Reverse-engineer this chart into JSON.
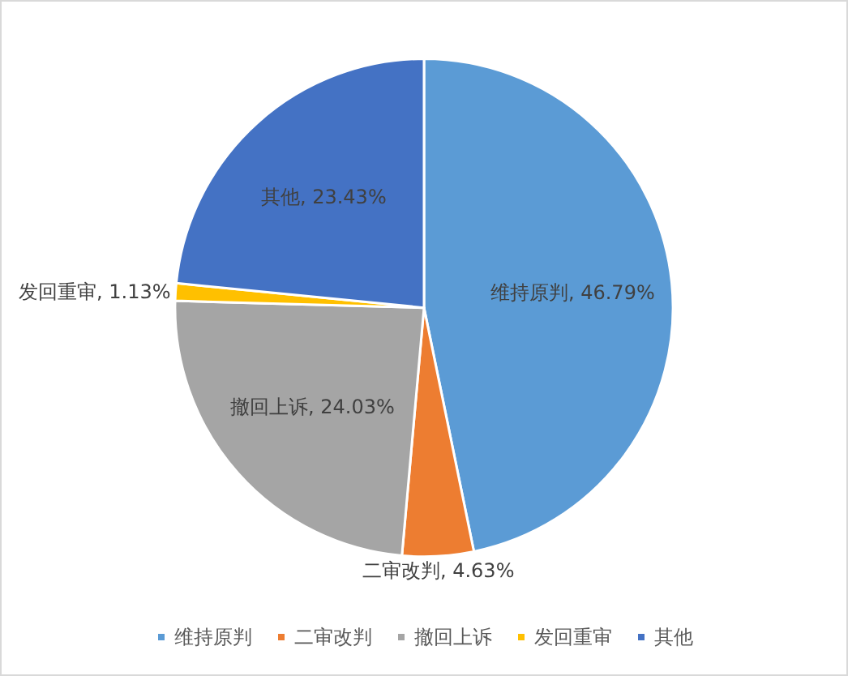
{
  "chart_data": {
    "type": "pie",
    "categories": [
      "维持原判",
      "二审改判",
      "撤回上诉",
      "发回重审",
      "其他"
    ],
    "values": [
      46.79,
      4.63,
      24.03,
      1.13,
      23.43
    ],
    "colors": [
      "#5b9bd5",
      "#ed7d31",
      "#a5a5a5",
      "#ffc000",
      "#4472c4"
    ],
    "value_labels": [
      "维持原判, 46.79%",
      "二审改判, 4.63%",
      "撤回上诉, 24.03%",
      "发回重审, 1.13%",
      "其他, 23.43%"
    ],
    "legend": "bottom"
  }
}
